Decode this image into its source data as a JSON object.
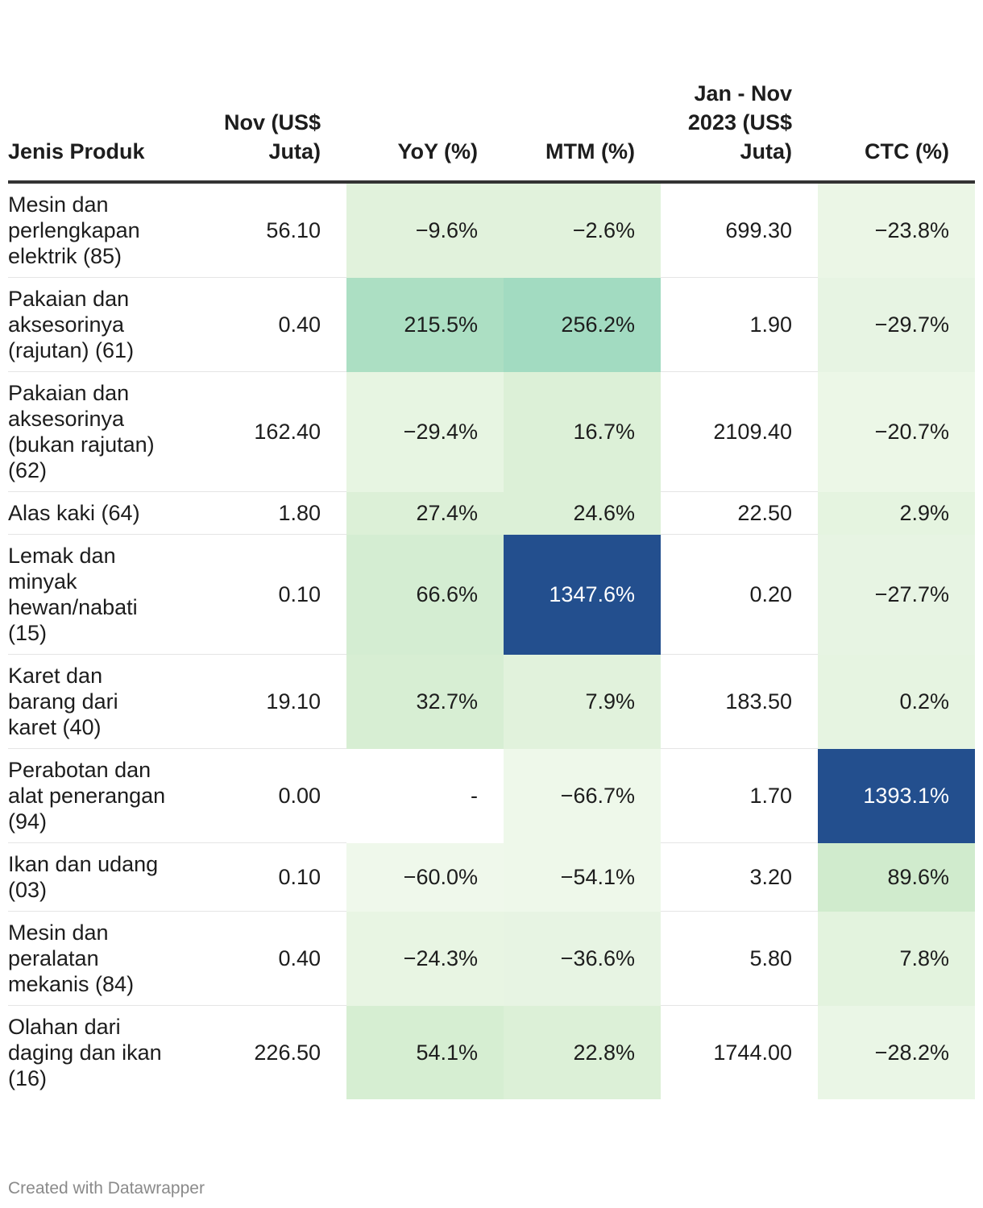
{
  "chart_data": {
    "type": "table",
    "columns": [
      "Jenis Produk",
      "Nov (US$ Juta)",
      "YoY (%)",
      "MTM (%)",
      "Jan - Nov 2023 (US$ Juta)",
      "CTC (%)"
    ],
    "rows": [
      {
        "label": "Mesin dan perlengkapan elektrik (85)",
        "cells": [
          "56.10",
          "−9.6%",
          "−2.6%",
          "699.30",
          "−23.8%"
        ]
      },
      {
        "label": "Pakaian dan aksesorinya (rajutan) (61)",
        "cells": [
          "0.40",
          "215.5%",
          "256.2%",
          "1.90",
          "−29.7%"
        ]
      },
      {
        "label": "Pakaian dan aksesorinya (bukan rajutan) (62)",
        "cells": [
          "162.40",
          "−29.4%",
          "16.7%",
          "2109.40",
          "−20.7%"
        ]
      },
      {
        "label": "Alas kaki (64)",
        "cells": [
          "1.80",
          "27.4%",
          "24.6%",
          "22.50",
          "2.9%"
        ]
      },
      {
        "label": "Lemak dan minyak hewan/nabati (15)",
        "cells": [
          "0.10",
          "66.6%",
          "1347.6%",
          "0.20",
          "−27.7%"
        ]
      },
      {
        "label": "Karet dan barang dari karet (40)",
        "cells": [
          "19.10",
          "32.7%",
          "7.9%",
          "183.50",
          "0.2%"
        ]
      },
      {
        "label": "Perabotan dan alat penerangan (94)",
        "cells": [
          "0.00",
          "-",
          "−66.7%",
          "1.70",
          "1393.1%"
        ]
      },
      {
        "label": "Ikan dan udang (03)",
        "cells": [
          "0.10",
          "−60.0%",
          "−54.1%",
          "3.20",
          "89.6%"
        ]
      },
      {
        "label": "Mesin dan peralatan mekanis (84)",
        "cells": [
          "0.40",
          "−24.3%",
          "−36.6%",
          "5.80",
          "7.8%"
        ]
      },
      {
        "label": "Olahan dari daging dan ikan (16)",
        "cells": [
          "226.50",
          "54.1%",
          "22.8%",
          "1744.00",
          "−28.2%"
        ]
      }
    ],
    "heatmap_columns": [
      1,
      2,
      4
    ],
    "heat_colors": {
      "low": "#f3f9ee",
      "high": "#9fd9bc",
      "max": "#234f8e",
      "max_text": "#ffffff",
      "none": "#ffffff"
    },
    "cell_colors": [
      [
        "#e1f2dc",
        "#e1f2dc",
        "#ebf6e6"
      ],
      [
        "#acdfc3",
        "#a2dbc1",
        "#e7f4e3"
      ],
      [
        "#e7f5e2",
        "#dcf0d7",
        "#ecf7e7"
      ],
      [
        "#dcf0d7",
        "#dcf0d7",
        "#e5f4e0"
      ],
      [
        "#d4edd2",
        "#234f8e",
        "#e7f4e3"
      ],
      [
        "#d7eed3",
        "#e1f2dc",
        "#e6f4e1"
      ],
      [
        "#ffffff",
        "#eef8ea",
        "#234f8e"
      ],
      [
        "#eff8eb",
        "#eef8ea",
        "#d0ebcd"
      ],
      [
        "#e8f5e3",
        "#e7f4e3",
        "#e3f3de"
      ],
      [
        "#d6eed2",
        "#dcf0d7",
        "#eaf6e6"
      ]
    ]
  },
  "footer": "Created with Datawrapper"
}
